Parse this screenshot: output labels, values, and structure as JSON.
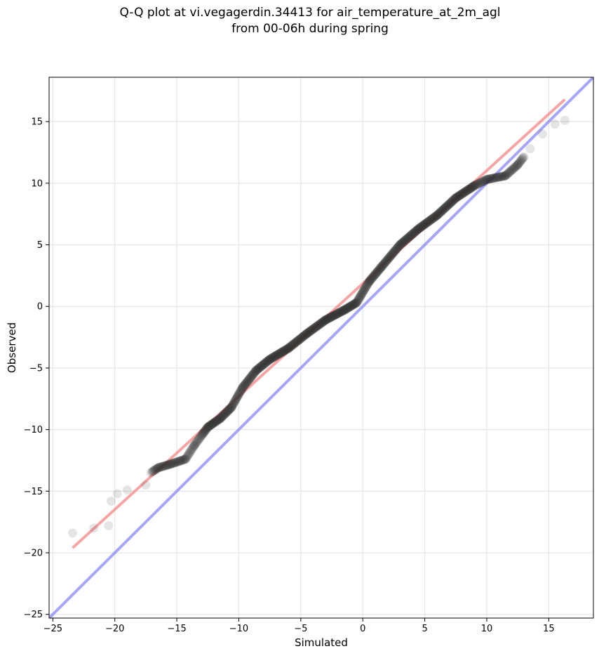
{
  "chart_data": {
    "type": "scatter",
    "title": "Q-Q plot at vi.vegagerdin.34413 for air_temperature_at_2m_agl",
    "subtitle": "from 00-06h during spring",
    "xlabel": "Simulated",
    "ylabel": "Observed",
    "xlim": [
      -25.3,
      18.6
    ],
    "ylim": [
      -25.3,
      18.6
    ],
    "xticks": [
      -25,
      -20,
      -15,
      -10,
      -5,
      0,
      5,
      10,
      15
    ],
    "yticks": [
      -25,
      -20,
      -15,
      -10,
      -5,
      0,
      5,
      10,
      15
    ],
    "xtick_labels": [
      "−25",
      "−20",
      "−15",
      "−10",
      "−5",
      "0",
      "5",
      "10",
      "15"
    ],
    "ytick_labels": [
      "−25",
      "−20",
      "−15",
      "−10",
      "−5",
      "0",
      "5",
      "10",
      "15"
    ],
    "grid": true,
    "legend": false,
    "colors": {
      "points": "#333333",
      "fit_line": "#f08080",
      "identity_line": "#8080f0"
    },
    "quantile_curve": {
      "x": [
        -23.4,
        -21.7,
        -20.5,
        -20.3,
        -19.8,
        -19.0,
        -17.5,
        -17.1,
        -16.5,
        -15.5,
        -14.3,
        -13.6,
        -12.5,
        -11.5,
        -10.6,
        -9.7,
        -8.6,
        -7.5,
        -6.0,
        -4.5,
        -3.0,
        -1.5,
        -0.5,
        0.5,
        1.5,
        3.0,
        4.5,
        6.0,
        7.5,
        9.0,
        10.0,
        11.5,
        12.5,
        13.5,
        14.5,
        15.5,
        16.3
      ],
      "y": [
        -18.4,
        -18.0,
        -17.8,
        -15.8,
        -15.2,
        -14.9,
        -14.5,
        -13.5,
        -13.1,
        -12.8,
        -12.4,
        -11.3,
        -9.8,
        -9.1,
        -8.2,
        -6.6,
        -5.2,
        -4.3,
        -3.4,
        -2.2,
        -1.1,
        -0.3,
        0.3,
        2.0,
        3.2,
        5.0,
        6.3,
        7.4,
        8.8,
        9.8,
        10.3,
        10.6,
        11.5,
        12.8,
        14.0,
        14.8,
        15.1
      ]
    },
    "fit_line": {
      "x": [
        -23.4,
        16.3
      ],
      "y": [
        -19.6,
        16.8
      ]
    },
    "identity_line": {
      "x": [
        -25.3,
        18.6
      ],
      "y": [
        -25.3,
        18.6
      ]
    }
  }
}
